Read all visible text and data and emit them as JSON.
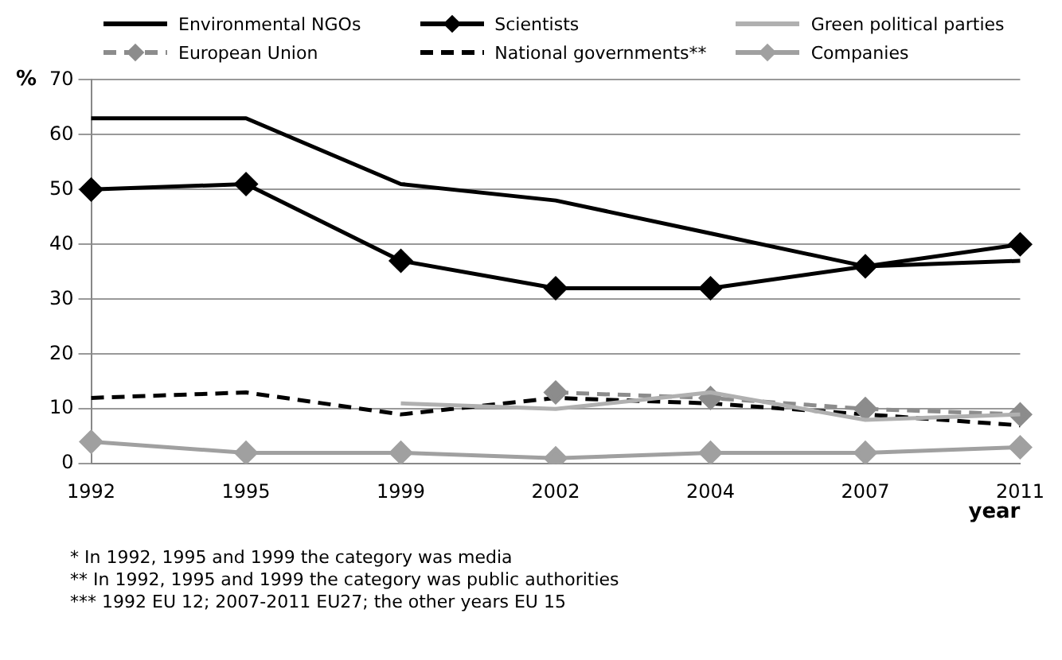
{
  "chart_data": {
    "type": "line",
    "categories": [
      "1992",
      "1995",
      "1999",
      "2002",
      "2004",
      "2007",
      "2011"
    ],
    "xlabel": "year",
    "ylabel": "%",
    "ylim": [
      0,
      70
    ],
    "yticks": [
      0,
      10,
      20,
      30,
      40,
      50,
      60,
      70
    ],
    "grid": "y",
    "legend": "top",
    "series": [
      {
        "name": "Environmental NGOs",
        "color": "#000000",
        "marker": "none",
        "line_style": "solid",
        "values": [
          63,
          63,
          51,
          48,
          42,
          36,
          37
        ]
      },
      {
        "name": "Scientists",
        "color": "#000000",
        "marker": "diamond",
        "line_style": "solid",
        "values": [
          50,
          51,
          37,
          32,
          32,
          36,
          40
        ]
      },
      {
        "name": "Green political parties",
        "color": "#b0b0b0",
        "marker": "none",
        "line_style": "solid",
        "values": [
          null,
          null,
          11,
          10,
          13,
          8,
          9
        ]
      },
      {
        "name": "European Union",
        "color": "#8c8c8c",
        "marker": "diamond",
        "line_style": "dashed",
        "values": [
          null,
          null,
          null,
          13,
          12,
          10,
          9
        ]
      },
      {
        "name": "National governments**",
        "color": "#000000",
        "marker": "none",
        "line_style": "dashed",
        "values": [
          12,
          13,
          9,
          12,
          11,
          9,
          7
        ]
      },
      {
        "name": "Companies",
        "color": "#a0a0a0",
        "marker": "diamond",
        "line_style": "solid",
        "values": [
          4,
          2,
          2,
          1,
          2,
          2,
          3
        ]
      }
    ],
    "annotations": [
      "* In 1992, 1995 and 1999 the category was media",
      "** In 1992, 1995 and 1999 the category was public authorities",
      "*** 1992 EU 12; 2007-2011 EU27; the other years EU 15"
    ]
  }
}
